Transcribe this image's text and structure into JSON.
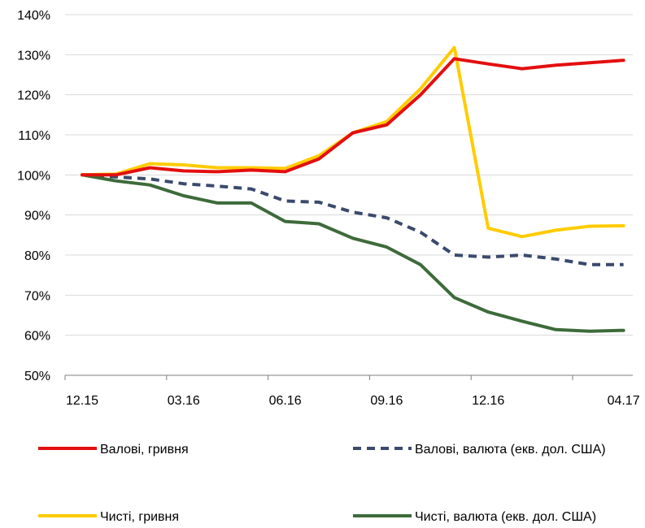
{
  "chart_data": {
    "type": "line",
    "x": [
      "12.15",
      "01.16",
      "02.16",
      "03.16",
      "04.16",
      "05.16",
      "06.16",
      "07.16",
      "08.16",
      "09.16",
      "10.16",
      "11.16",
      "12.16",
      "01.17",
      "02.17",
      "03.17",
      "04.17"
    ],
    "x_tick_labels": [
      "12.15",
      "03.16",
      "06.16",
      "09.16",
      "12.16",
      "04.17"
    ],
    "ylim": [
      0.5,
      1.4
    ],
    "y_tick_labels": [
      "50%",
      "60%",
      "70%",
      "80%",
      "90%",
      "100%",
      "110%",
      "120%",
      "130%",
      "140%"
    ],
    "grid": true,
    "legend_position": "bottom",
    "series": [
      {
        "name": "Валові, гривня",
        "color": "#e30f0f",
        "style": "solid",
        "values": [
          1.0,
          1.0,
          1.018,
          1.01,
          1.008,
          1.012,
          1.008,
          1.04,
          1.105,
          1.125,
          1.2,
          1.29,
          1.277,
          1.265,
          1.274,
          1.28,
          1.286
        ]
      },
      {
        "name": "Валові, валюта (екв. дол. США)",
        "color": "#3a4a6b",
        "style": "dashed",
        "values": [
          1.0,
          0.995,
          0.99,
          0.978,
          0.972,
          0.965,
          0.935,
          0.932,
          0.907,
          0.893,
          0.857,
          0.8,
          0.795,
          0.8,
          0.79,
          0.776,
          0.776
        ]
      },
      {
        "name": "Чисті, гривня",
        "color": "#ffcc00",
        "style": "solid",
        "values": [
          1.0,
          1.002,
          1.028,
          1.025,
          1.018,
          1.018,
          1.016,
          1.048,
          1.105,
          1.133,
          1.215,
          1.318,
          0.867,
          0.846,
          0.862,
          0.872,
          0.873
        ]
      },
      {
        "name": "Чисті, валюта (екв. дол. США)",
        "color": "#3d6b3a",
        "style": "solid",
        "values": [
          1.0,
          0.985,
          0.975,
          0.948,
          0.93,
          0.93,
          0.884,
          0.878,
          0.842,
          0.82,
          0.776,
          0.694,
          0.658,
          0.635,
          0.614,
          0.61,
          0.612
        ]
      }
    ]
  }
}
